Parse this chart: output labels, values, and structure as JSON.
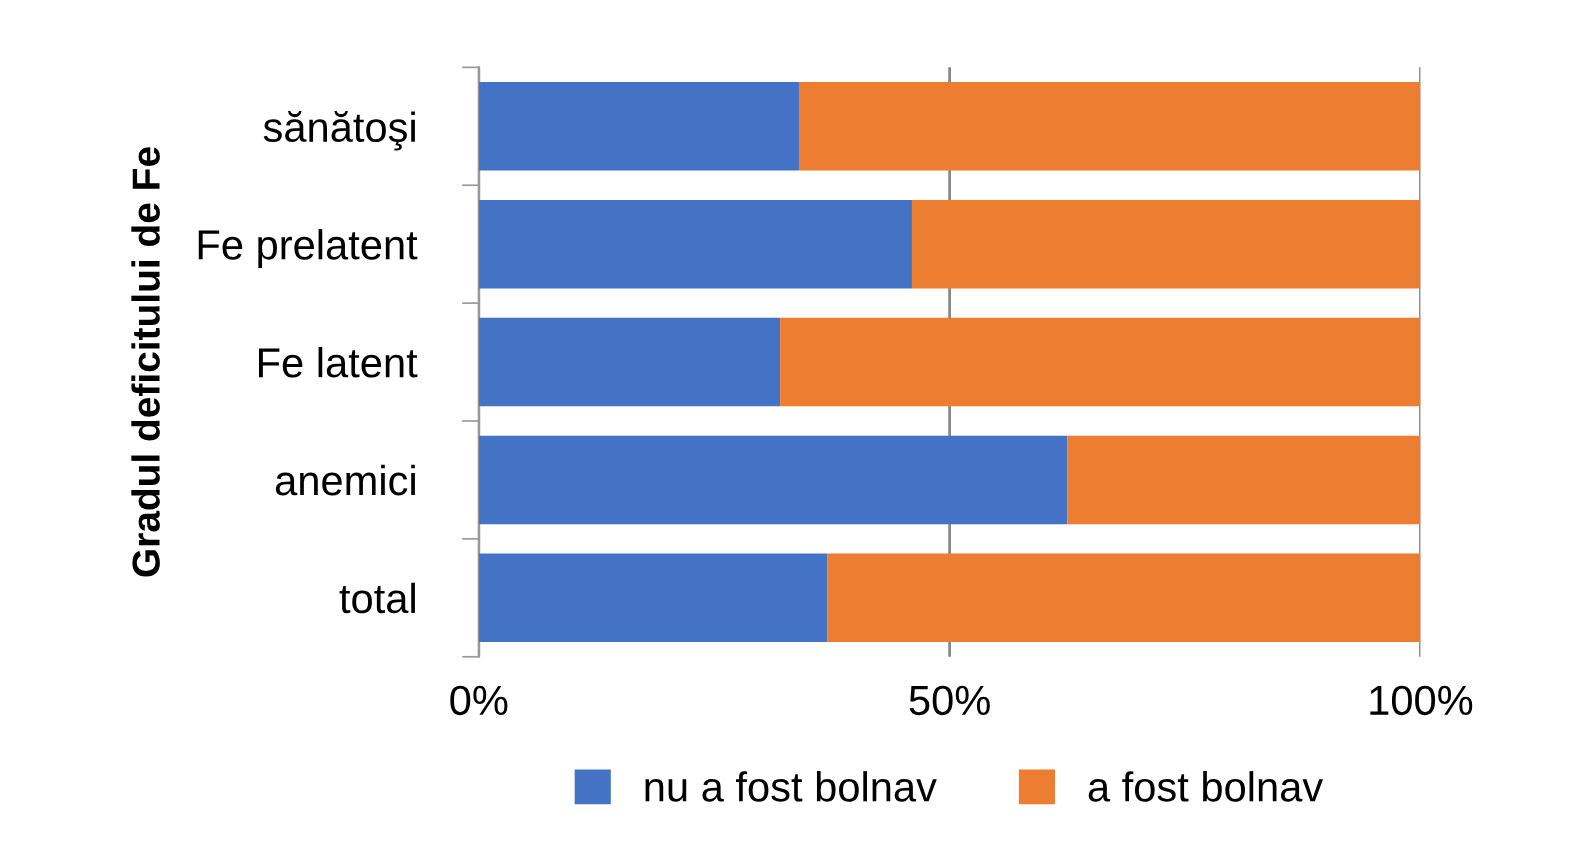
{
  "chart_data": {
    "type": "bar",
    "orientation": "horizontal",
    "stacked": true,
    "ylabel": "Gradul deficitului de Fe",
    "categories": [
      "sănătoşi",
      "Fe prelatent",
      "Fe latent",
      "anemici",
      "total"
    ],
    "series": [
      {
        "name": "nu a fost bolnav",
        "color": "#4472c4",
        "values": [
          34,
          46,
          32,
          62.5,
          37
        ]
      },
      {
        "name": "a fost bolnav",
        "color": "#ed7d31",
        "values": [
          66,
          54,
          68,
          37.5,
          63
        ]
      }
    ],
    "xlim": [
      0,
      100
    ],
    "xticks": [
      {
        "value": 0,
        "label": "0%"
      },
      {
        "value": 50,
        "label": "50%"
      },
      {
        "value": 100,
        "label": "100%"
      }
    ],
    "grid": "x",
    "legend": "bottom"
  }
}
